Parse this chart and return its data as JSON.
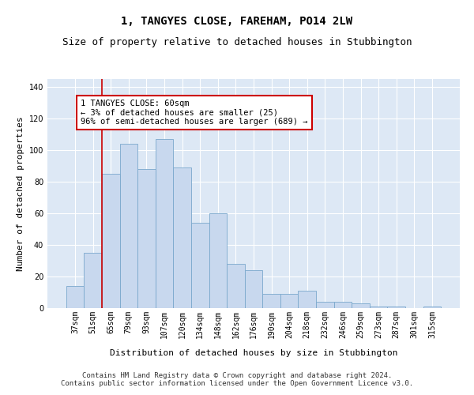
{
  "title": "1, TANGYES CLOSE, FAREHAM, PO14 2LW",
  "subtitle": "Size of property relative to detached houses in Stubbington",
  "xlabel": "Distribution of detached houses by size in Stubbington",
  "ylabel": "Number of detached properties",
  "categories": [
    "37sqm",
    "51sqm",
    "65sqm",
    "79sqm",
    "93sqm",
    "107sqm",
    "120sqm",
    "134sqm",
    "148sqm",
    "162sqm",
    "176sqm",
    "190sqm",
    "204sqm",
    "218sqm",
    "232sqm",
    "246sqm",
    "259sqm",
    "273sqm",
    "287sqm",
    "301sqm",
    "315sqm"
  ],
  "values": [
    14,
    35,
    85,
    104,
    88,
    107,
    89,
    54,
    60,
    28,
    24,
    9,
    9,
    11,
    4,
    4,
    3,
    1,
    1,
    0,
    1
  ],
  "bar_color": "#c8d8ee",
  "bar_edge_color": "#7aa8cc",
  "vline_color": "#cc0000",
  "vline_x": 1.5,
  "annotation_text": "1 TANGYES CLOSE: 60sqm\n← 3% of detached houses are smaller (25)\n96% of semi-detached houses are larger (689) →",
  "annotation_box_color": "#ffffff",
  "annotation_box_edge": "#cc0000",
  "ylim": [
    0,
    145
  ],
  "yticks": [
    0,
    20,
    40,
    60,
    80,
    100,
    120,
    140
  ],
  "background_color": "#dde8f5",
  "grid_color": "#ffffff",
  "footer_text": "Contains HM Land Registry data © Crown copyright and database right 2024.\nContains public sector information licensed under the Open Government Licence v3.0.",
  "title_fontsize": 10,
  "subtitle_fontsize": 9,
  "label_fontsize": 8,
  "tick_fontsize": 7,
  "annotation_fontsize": 7.5,
  "footer_fontsize": 6.5
}
